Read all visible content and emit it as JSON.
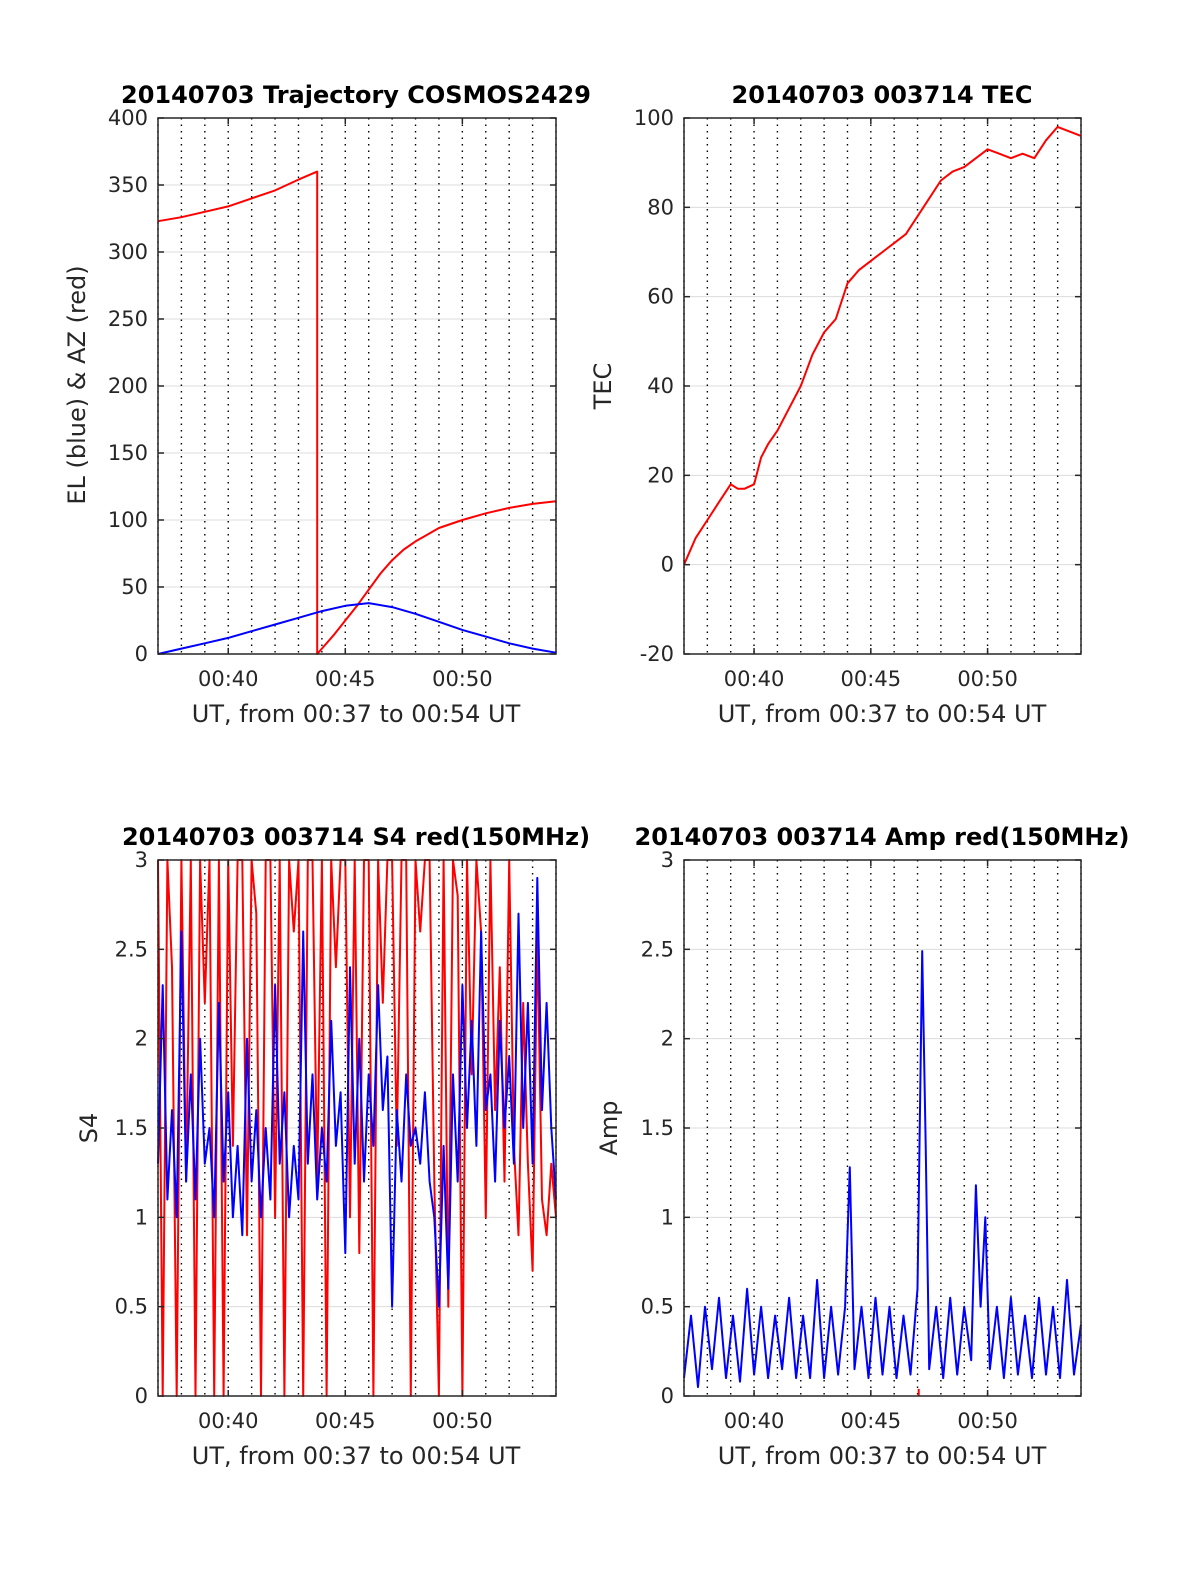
{
  "chart_data": [
    {
      "id": "trajectory",
      "type": "line",
      "title": "20140703 Trajectory COSMOS2429",
      "xlabel": "UT, from 00:37 to 00:54 UT",
      "ylabel": "EL (blue) & AZ (red)",
      "xlim": [
        37,
        54
      ],
      "ylim": [
        0,
        400
      ],
      "xticks": [
        40,
        45,
        50
      ],
      "xtick_labels": [
        "00:40",
        "00:45",
        "00:50"
      ],
      "yticks": [
        0,
        50,
        100,
        150,
        200,
        250,
        300,
        350,
        400
      ],
      "ytick_labels": [
        "0",
        "50",
        "100",
        "150",
        "200",
        "250",
        "300",
        "350",
        "400"
      ],
      "grid": true,
      "series": [
        {
          "color": "#ff0000",
          "x": [
            37,
            38,
            39,
            40,
            41,
            42,
            43,
            43.8,
            43.8,
            44,
            44.5,
            45,
            45.5,
            46,
            46.5,
            47,
            47.5,
            48,
            48.5,
            49,
            50,
            51,
            52,
            53,
            54
          ],
          "y": [
            323,
            326,
            330,
            334,
            340,
            346,
            354,
            360,
            0,
            4,
            14,
            25,
            36,
            48,
            60,
            70,
            78,
            84,
            89,
            94,
            100,
            105,
            109,
            112,
            114
          ]
        },
        {
          "color": "#0000ff",
          "x": [
            37,
            38,
            39,
            40,
            41,
            42,
            43,
            44,
            45,
            46,
            47,
            48,
            49,
            50,
            51,
            52,
            53,
            54
          ],
          "y": [
            0,
            4,
            8,
            12,
            17,
            22,
            27,
            32,
            36,
            38,
            35,
            30,
            24,
            18,
            13,
            8,
            4,
            1
          ]
        }
      ]
    },
    {
      "id": "tec",
      "type": "line",
      "title": "20140703 003714 TEC",
      "xlabel": "UT, from 00:37 to 00:54 UT",
      "ylabel": "TEC",
      "xlim": [
        37,
        54
      ],
      "ylim": [
        -20,
        100
      ],
      "xticks": [
        40,
        45,
        50
      ],
      "xtick_labels": [
        "00:40",
        "00:45",
        "00:50"
      ],
      "yticks": [
        -20,
        0,
        20,
        40,
        60,
        80,
        100
      ],
      "ytick_labels": [
        "-20",
        "0",
        "20",
        "40",
        "60",
        "80",
        "100"
      ],
      "grid": true,
      "series": [
        {
          "color": "#ff0000",
          "x": [
            37,
            37.5,
            38,
            38.5,
            39,
            39.3,
            39.6,
            40,
            40.3,
            40.6,
            41,
            41.5,
            42,
            42.5,
            43,
            43.5,
            44,
            44.5,
            45,
            45.5,
            46,
            46.5,
            47,
            47.5,
            48,
            48.5,
            49,
            49.5,
            50,
            50.5,
            51,
            51.5,
            52,
            52.5,
            53,
            53.5,
            54
          ],
          "y": [
            0,
            6,
            10,
            14,
            18,
            17,
            17,
            18,
            24,
            27,
            30,
            35,
            40,
            47,
            52,
            55,
            63,
            66,
            68,
            70,
            72,
            74,
            78,
            82,
            86,
            88,
            89,
            91,
            93,
            92,
            91,
            92,
            91,
            95,
            98,
            97,
            96
          ]
        }
      ]
    },
    {
      "id": "s4",
      "type": "line",
      "title": "20140703 003714 S4 red(150MHz)",
      "xlabel": "UT, from 00:37 to 00:54 UT",
      "ylabel": "S4",
      "xlim": [
        37,
        54
      ],
      "ylim": [
        0,
        3
      ],
      "xticks": [
        40,
        45,
        50
      ],
      "xtick_labels": [
        "00:40",
        "00:45",
        "00:50"
      ],
      "yticks": [
        0,
        0.5,
        1,
        1.5,
        2,
        2.5,
        3
      ],
      "ytick_labels": [
        "0",
        "0.5",
        "1",
        "1.5",
        "2",
        "2.5",
        "3"
      ],
      "grid": true,
      "series": [
        {
          "color": "#ff0000",
          "x": [
            37,
            37.2,
            37.4,
            37.6,
            37.8,
            38,
            38.2,
            38.4,
            38.6,
            38.8,
            39,
            39.2,
            39.4,
            39.6,
            39.8,
            40,
            40.2,
            40.4,
            40.6,
            40.8,
            41,
            41.2,
            41.4,
            41.6,
            41.8,
            42,
            42.2,
            42.4,
            42.6,
            42.8,
            43,
            43.2,
            43.4,
            43.6,
            43.8,
            44,
            44.2,
            44.4,
            44.6,
            44.8,
            45,
            45.2,
            45.4,
            45.6,
            45.8,
            46,
            46.2,
            46.4,
            46.6,
            46.8,
            47,
            47.2,
            47.4,
            47.6,
            47.8,
            48,
            48.2,
            48.4,
            48.6,
            48.8,
            49,
            49.2,
            49.4,
            49.6,
            49.8,
            50,
            50.2,
            50.4,
            50.6,
            50.8,
            51,
            51.2,
            51.4,
            51.6,
            51.8,
            52,
            52.2,
            52.4,
            52.6,
            52.8,
            53,
            53.2,
            53.4,
            53.6,
            53.8,
            54
          ],
          "y": [
            3,
            0,
            3,
            2.4,
            0,
            3,
            1.2,
            3,
            0,
            3,
            2.2,
            3,
            0,
            3,
            0,
            3,
            1.4,
            3,
            3,
            0.9,
            3,
            2.7,
            0,
            3,
            3,
            1.0,
            3,
            0,
            3,
            2.6,
            3,
            0,
            3,
            3,
            1.2,
            3,
            0,
            3,
            2.4,
            3,
            3,
            1.0,
            3,
            0.8,
            3,
            3,
            0,
            3,
            2.2,
            3,
            3,
            1.4,
            3,
            3,
            0,
            3,
            2.6,
            3,
            3,
            1.2,
            0,
            3,
            0.5,
            3,
            2.8,
            0,
            3,
            1.8,
            3,
            2.6,
            1.0,
            3,
            1.6,
            2.4,
            1.2,
            3,
            1.4,
            0.9,
            2.2,
            1.3,
            0.7,
            2.6,
            1.1,
            0.9,
            1.3,
            1.0
          ]
        },
        {
          "color": "#0000ff",
          "x": [
            37,
            37.2,
            37.4,
            37.6,
            37.8,
            38,
            38.2,
            38.4,
            38.6,
            38.8,
            39,
            39.2,
            39.4,
            39.6,
            39.8,
            40,
            40.2,
            40.4,
            40.6,
            40.8,
            41,
            41.2,
            41.4,
            41.6,
            41.8,
            42,
            42.2,
            42.4,
            42.6,
            42.8,
            43,
            43.2,
            43.4,
            43.6,
            43.8,
            44,
            44.2,
            44.4,
            44.6,
            44.8,
            45,
            45.2,
            45.4,
            45.6,
            45.8,
            46,
            46.2,
            46.4,
            46.6,
            46.8,
            47,
            47.2,
            47.4,
            47.6,
            47.8,
            48,
            48.2,
            48.4,
            48.6,
            48.8,
            49,
            49.2,
            49.4,
            49.6,
            49.8,
            50,
            50.2,
            50.4,
            50.6,
            50.8,
            51,
            51.2,
            51.4,
            51.6,
            51.8,
            52,
            52.2,
            52.4,
            52.6,
            52.8,
            53,
            53.2,
            53.4,
            53.6,
            53.8,
            54
          ],
          "y": [
            1.3,
            2.3,
            1.1,
            1.6,
            1.0,
            2.6,
            1.2,
            1.8,
            1.1,
            2.0,
            1.3,
            1.5,
            1.0,
            2.2,
            1.2,
            1.7,
            1.0,
            1.4,
            0.9,
            2.0,
            1.2,
            1.6,
            1.0,
            1.5,
            1.1,
            2.3,
            1.3,
            1.7,
            1.0,
            1.4,
            1.1,
            2.6,
            1.3,
            1.8,
            1.1,
            1.5,
            1.2,
            2.1,
            1.4,
            1.7,
            0.8,
            2.4,
            1.3,
            2.0,
            1.2,
            1.8,
            1.4,
            2.3,
            1.6,
            1.9,
            0.5,
            1.6,
            1.2,
            1.8,
            1.4,
            1.5,
            1.3,
            1.7,
            1.2,
            1.0,
            0.5,
            1.4,
            0.6,
            1.8,
            1.2,
            2.3,
            1.5,
            2.1,
            1.4,
            2.6,
            1.6,
            1.8,
            1.2,
            2.1,
            1.5,
            1.9,
            1.3,
            2.7,
            1.5,
            2.2,
            1.3,
            2.9,
            1.6,
            2.2,
            1.5,
            1.1
          ]
        }
      ]
    },
    {
      "id": "amp",
      "type": "line",
      "title": "20140703 003714 Amp red(150MHz)",
      "xlabel": "UT, from 00:37 to 00:54 UT",
      "ylabel": "Amp",
      "xlim": [
        37,
        54
      ],
      "ylim": [
        0,
        3
      ],
      "xticks": [
        40,
        45,
        50
      ],
      "xtick_labels": [
        "00:40",
        "00:45",
        "00:50"
      ],
      "yticks": [
        0,
        0.5,
        1,
        1.5,
        2,
        2.5,
        3
      ],
      "ytick_labels": [
        "0",
        "0.5",
        "1",
        "1.5",
        "2",
        "2.5",
        "3"
      ],
      "grid": true,
      "series": [
        {
          "color": "#0000ff",
          "x": [
            37,
            37.3,
            37.6,
            37.9,
            38.2,
            38.5,
            38.8,
            39.1,
            39.4,
            39.7,
            40,
            40.3,
            40.6,
            40.9,
            41.2,
            41.5,
            41.8,
            42.1,
            42.4,
            42.7,
            43,
            43.3,
            43.6,
            43.9,
            44.1,
            44.3,
            44.6,
            44.9,
            45.2,
            45.5,
            45.8,
            46.1,
            46.4,
            46.7,
            47,
            47.2,
            47.35,
            47.5,
            47.8,
            48.1,
            48.4,
            48.7,
            49,
            49.3,
            49.5,
            49.7,
            49.9,
            50.1,
            50.4,
            50.7,
            51,
            51.3,
            51.6,
            51.9,
            52.2,
            52.5,
            52.8,
            53.1,
            53.4,
            53.7,
            54
          ],
          "y": [
            0.1,
            0.45,
            0.05,
            0.5,
            0.15,
            0.55,
            0.1,
            0.45,
            0.08,
            0.6,
            0.12,
            0.5,
            0.1,
            0.45,
            0.15,
            0.55,
            0.1,
            0.45,
            0.1,
            0.65,
            0.1,
            0.5,
            0.12,
            0.5,
            1.28,
            0.15,
            0.5,
            0.1,
            0.55,
            0.12,
            0.5,
            0.1,
            0.45,
            0.12,
            0.6,
            2.49,
            1.4,
            0.15,
            0.5,
            0.1,
            0.55,
            0.12,
            0.5,
            0.2,
            1.18,
            0.5,
            1.0,
            0.15,
            0.5,
            0.1,
            0.55,
            0.12,
            0.45,
            0.1,
            0.55,
            0.12,
            0.5,
            0.1,
            0.65,
            0.12,
            0.4
          ]
        },
        {
          "color": "#ff0000",
          "x": [
            47.05,
            47.05
          ],
          "y": [
            0,
            0.04
          ]
        }
      ]
    }
  ]
}
